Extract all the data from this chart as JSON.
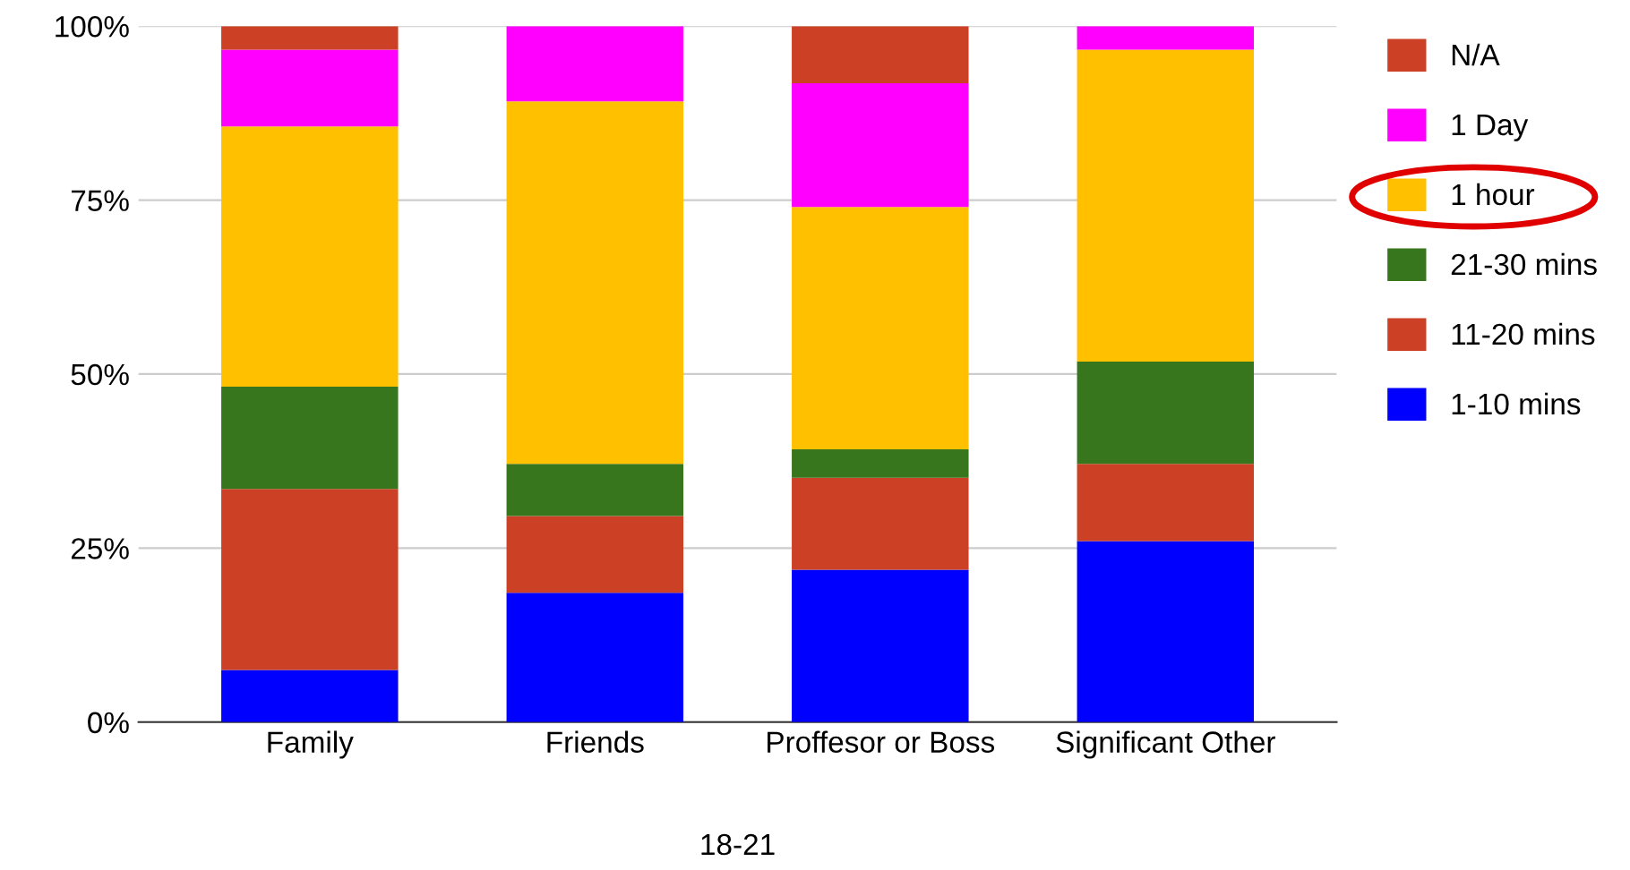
{
  "chart_data": {
    "type": "bar",
    "stacked": true,
    "xlabel": "18-21",
    "categories": [
      "Family",
      "Friends",
      "Proffesor or Boss",
      "Significant Other"
    ],
    "series": [
      {
        "name": "1-10 mins",
        "color": "#0000ff",
        "values": [
          7.5,
          18.6,
          21.9,
          26.0
        ]
      },
      {
        "name": "11-20 mins",
        "color": "#cc4125",
        "values": [
          26.0,
          11.0,
          13.2,
          11.1
        ]
      },
      {
        "name": "21-30 mins",
        "color": "#38761d",
        "values": [
          14.7,
          7.5,
          4.1,
          14.7
        ]
      },
      {
        "name": "1 hour",
        "color": "#ffc000",
        "values": [
          37.4,
          52.1,
          34.8,
          44.8
        ]
      },
      {
        "name": "1 Day",
        "color": "#ff00ff",
        "values": [
          11.0,
          10.8,
          17.8,
          3.4
        ]
      },
      {
        "name": "N/A",
        "color": "#cc4125",
        "values": [
          3.4,
          0,
          8.2,
          0
        ]
      }
    ],
    "ylim": [
      0,
      100
    ],
    "yticks": [
      {
        "value": 0,
        "label": "0%"
      },
      {
        "value": 25,
        "label": "25%"
      },
      {
        "value": 50,
        "label": "50%"
      },
      {
        "value": 75,
        "label": "75%"
      },
      {
        "value": 100,
        "label": "100%"
      }
    ],
    "grid": "y",
    "legend": "right"
  }
}
